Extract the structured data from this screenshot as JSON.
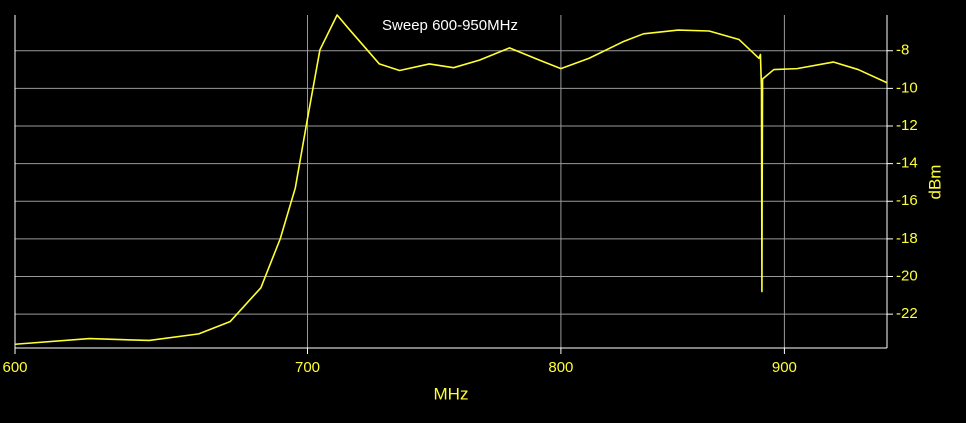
{
  "chart_data": {
    "type": "line",
    "title": "Sweep 600-950MHz",
    "x_label": "MHz",
    "y_label": "dBm",
    "x_scale": "log",
    "y_axis_side": "right",
    "grid": true,
    "color": "#ffff33",
    "x": [
      600,
      624,
      644,
      661,
      672,
      683,
      690,
      695.5,
      700,
      704.6,
      711,
      715.8,
      727,
      734.8,
      746.4,
      756,
      766.4,
      778.6,
      791,
      800,
      812,
      827,
      835.6,
      851,
      865,
      878.7,
      888,
      888.7,
      889.2,
      889.4,
      889.5,
      889.7,
      895,
      906,
      923.5,
      935.7,
      950
    ],
    "values": [
      -23.6,
      -23.3,
      -23.4,
      -23.05,
      -22.4,
      -20.6,
      -18,
      -15.3,
      -11.6,
      -7.95,
      -6.1,
      -6.9,
      -8.7,
      -9.05,
      -8.7,
      -8.9,
      -8.5,
      -7.85,
      -8.5,
      -8.95,
      -8.4,
      -7.5,
      -7.1,
      -6.9,
      -6.95,
      -7.4,
      -8.4,
      -8.2,
      -10.05,
      -20.8,
      -15.8,
      -9.5,
      -9.0,
      -8.95,
      -8.6,
      -9.0,
      -9.7
    ],
    "xlim": [
      600,
      950
    ],
    "xticks": [
      600,
      700,
      800,
      900
    ],
    "ylim": [
      -23.8,
      -6.1
    ],
    "yticks": [
      -8,
      -10,
      -12,
      -14,
      -16,
      -18,
      -20,
      -22
    ]
  }
}
